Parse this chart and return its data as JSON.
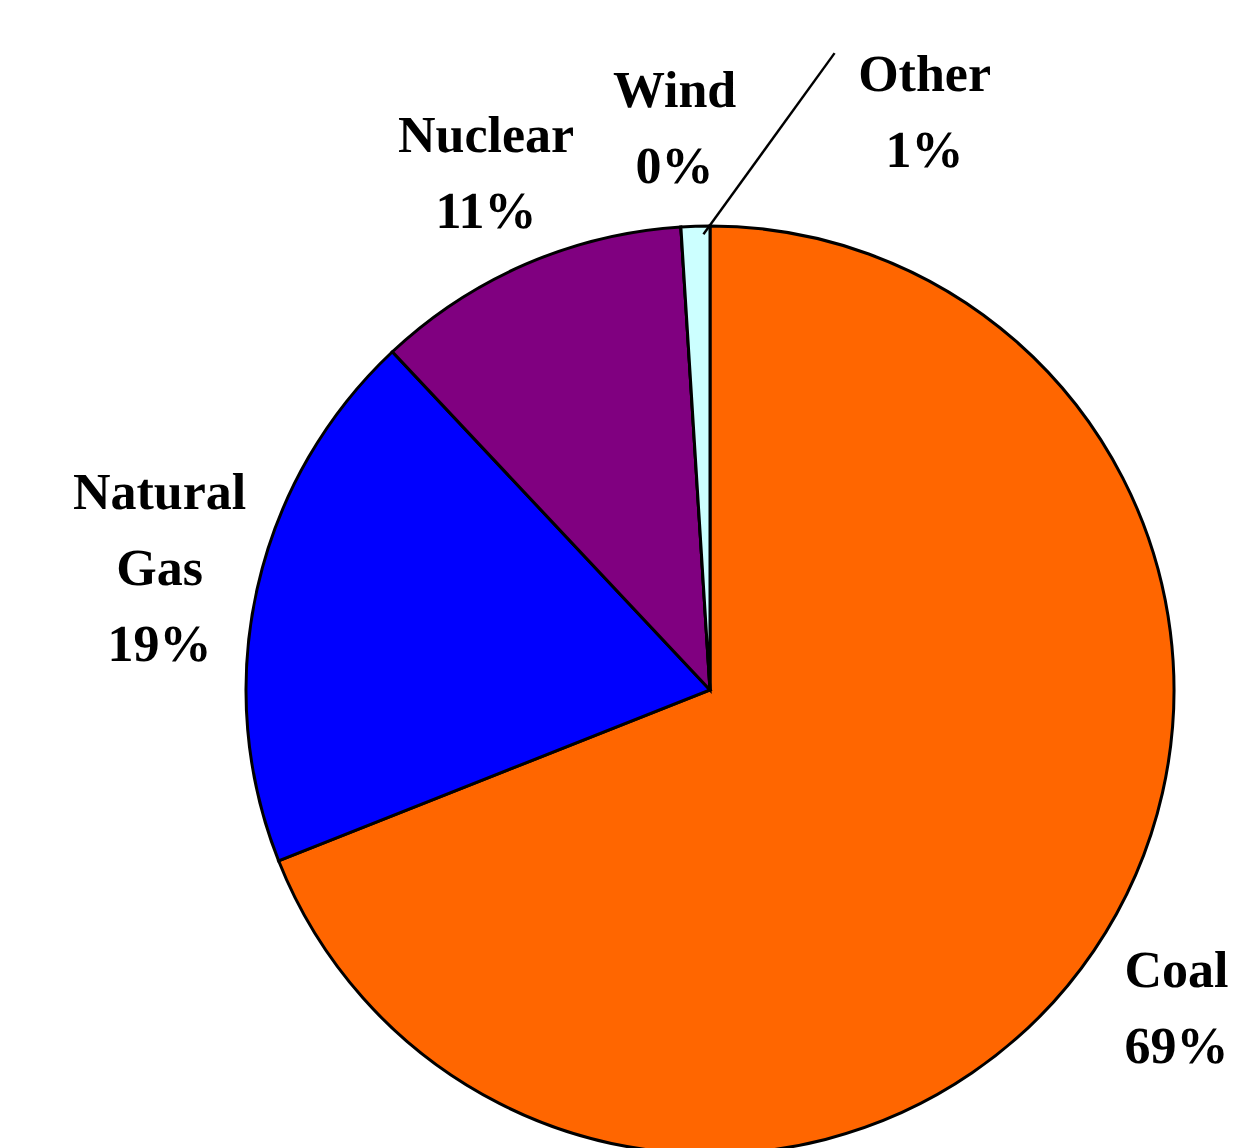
{
  "chart_data": {
    "type": "pie",
    "categories": [
      "Coal",
      "Natural Gas",
      "Nuclear",
      "Wind",
      "Other"
    ],
    "values": [
      69,
      19,
      11,
      0,
      1
    ],
    "colors": [
      "#ff6600",
      "#0000ff",
      "#800080",
      "#006666",
      "#ccffff"
    ],
    "value_labels": [
      "69%",
      "19%",
      "11%",
      "0%",
      "1%"
    ]
  }
}
